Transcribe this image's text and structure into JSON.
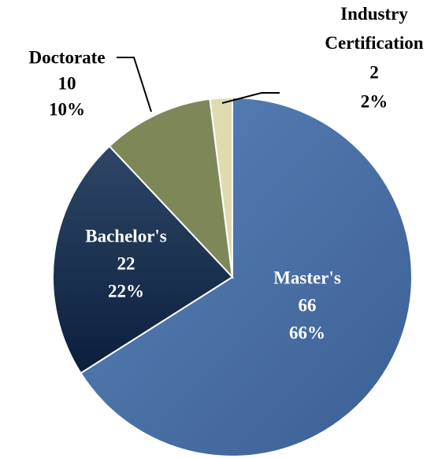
{
  "chart_data": {
    "type": "pie",
    "categories": [
      "Master's",
      "Bachelor's",
      "Doctorate",
      "Industry Certification"
    ],
    "values": [
      66,
      22,
      10,
      2
    ],
    "value_labels": [
      "66%",
      "22%",
      "10%",
      "2%"
    ],
    "colors": [
      "#4a70a6",
      "#10294a",
      "#7d8757",
      "#dedcae"
    ]
  }
}
